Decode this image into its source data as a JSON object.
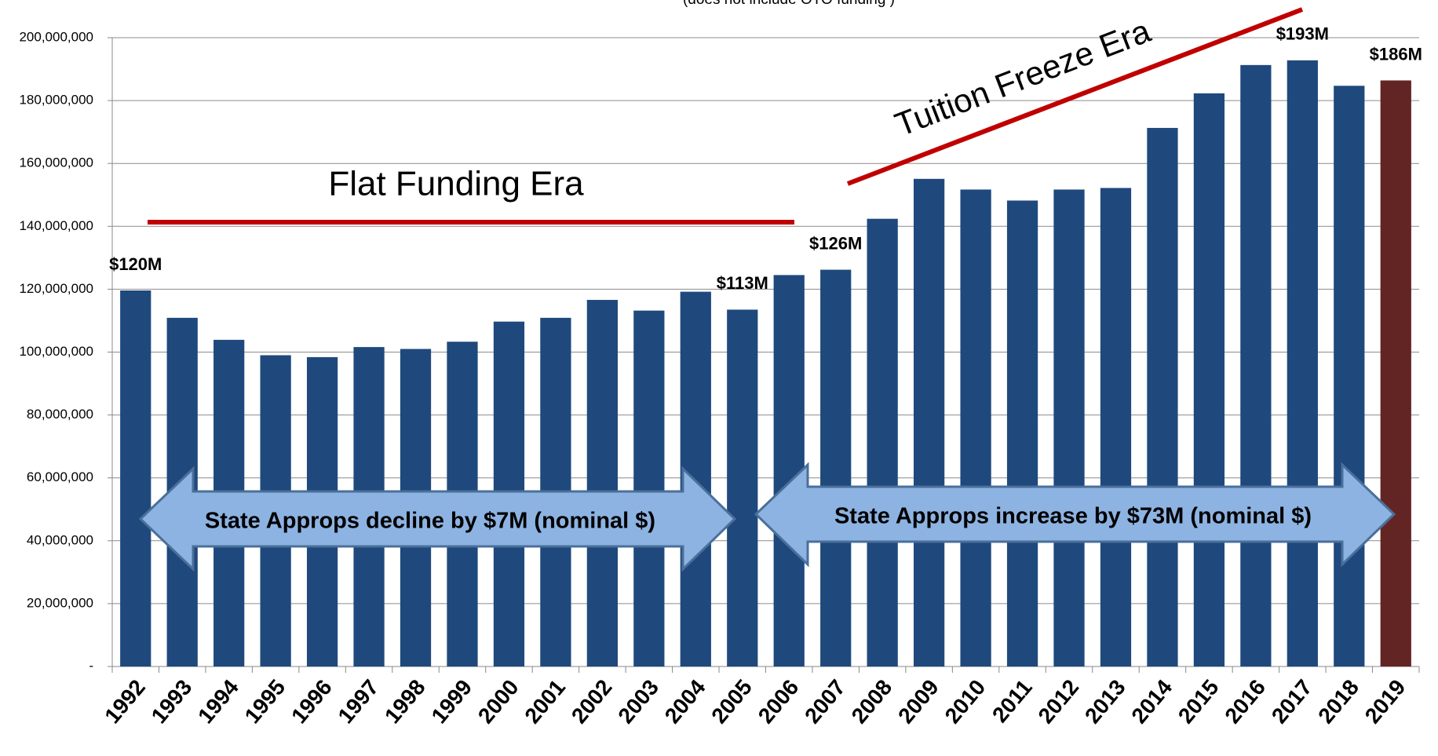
{
  "chart_data": {
    "type": "bar",
    "subtitle": "(does not include OTO funding )",
    "categories": [
      "1992",
      "1993",
      "1994",
      "1995",
      "1996",
      "1997",
      "1998",
      "1999",
      "2000",
      "2001",
      "2002",
      "2003",
      "2004",
      "2005",
      "2006",
      "2007",
      "2008",
      "2009",
      "2010",
      "2011",
      "2012",
      "2013",
      "2014",
      "2015",
      "2016",
      "2017",
      "2018",
      "2019"
    ],
    "values": [
      119600000,
      110900000,
      103900000,
      99000000,
      98400000,
      101600000,
      101000000,
      103300000,
      109700000,
      110900000,
      116600000,
      113200000,
      119200000,
      113500000,
      124500000,
      126200000,
      142400000,
      155100000,
      151700000,
      148200000,
      151700000,
      152200000,
      171300000,
      182300000,
      191300000,
      192800000,
      184700000,
      186400000
    ],
    "value_labels": [
      "$120M",
      null,
      null,
      null,
      null,
      null,
      null,
      null,
      null,
      null,
      null,
      null,
      null,
      "$113M",
      null,
      "$126M",
      null,
      null,
      null,
      null,
      null,
      null,
      null,
      null,
      null,
      "$193M",
      null,
      "$186M"
    ],
    "colors": [
      "#1f497d",
      "#1f497d",
      "#1f497d",
      "#1f497d",
      "#1f497d",
      "#1f497d",
      "#1f497d",
      "#1f497d",
      "#1f497d",
      "#1f497d",
      "#1f497d",
      "#1f497d",
      "#1f497d",
      "#1f497d",
      "#1f497d",
      "#1f497d",
      "#1f497d",
      "#1f497d",
      "#1f497d",
      "#1f497d",
      "#1f497d",
      "#1f497d",
      "#1f497d",
      "#1f497d",
      "#1f497d",
      "#1f497d",
      "#1f497d",
      "#632523"
    ],
    "ylim": [
      0,
      200000000
    ],
    "yticks": [
      {
        "value": 0,
        "label": "-"
      },
      {
        "value": 20000000,
        "label": "20,000,000"
      },
      {
        "value": 40000000,
        "label": "40,000,000"
      },
      {
        "value": 60000000,
        "label": "60,000,000"
      },
      {
        "value": 80000000,
        "label": "80,000,000"
      },
      {
        "value": 100000000,
        "label": "100,000,000"
      },
      {
        "value": 120000000,
        "label": "120,000,000"
      },
      {
        "value": 140000000,
        "label": "140,000,000"
      },
      {
        "value": 160000000,
        "label": "160,000,000"
      },
      {
        "value": 180000000,
        "label": "180,000,000"
      },
      {
        "value": 200000000,
        "label": "200,000,000"
      }
    ],
    "grid": true,
    "annotations": [
      "Flat Funding Era",
      "Tuition Freeze Era",
      "State Approps decline by $7M (nominal $)",
      "State Approps increase by $73M (nominal $)"
    ]
  }
}
